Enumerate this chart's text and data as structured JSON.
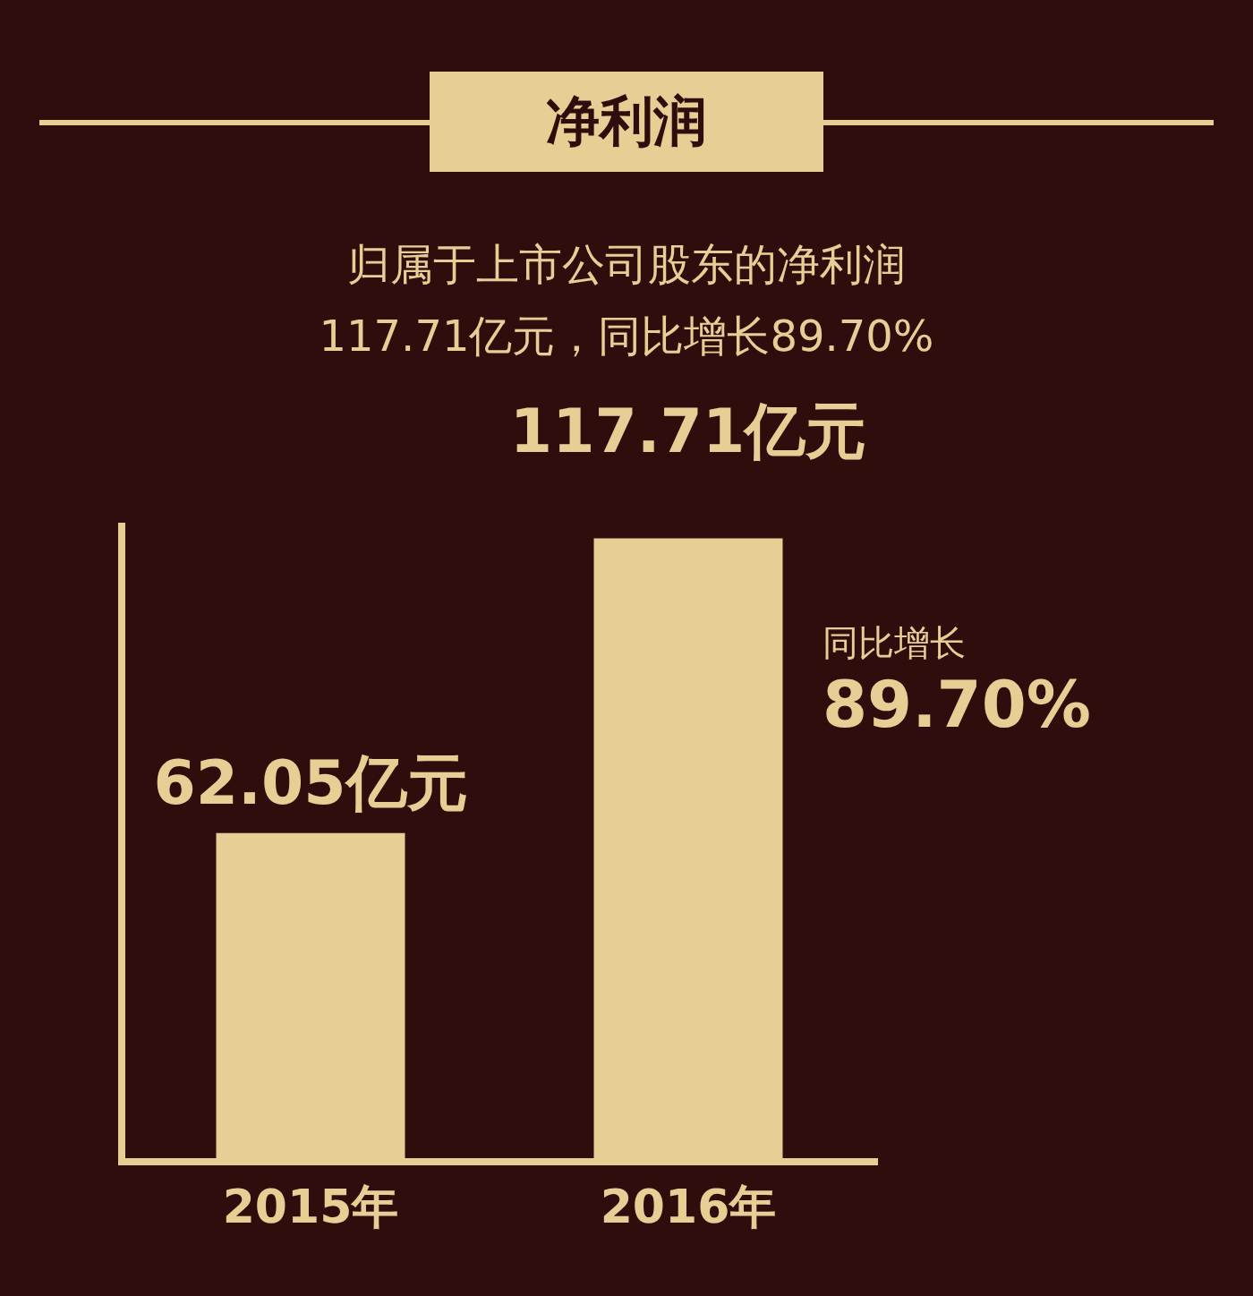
{
  "chart_data": {
    "type": "bar",
    "title": "净利润",
    "subtitle": "归属于上市公司股东的净利润\n117.71亿元，同比增长89.70%",
    "categories": [
      "2015年",
      "2016年"
    ],
    "values": [
      62.05,
      117.71
    ],
    "color": "#e6cf95",
    "value_labels": [
      "62.05亿元",
      "117.71亿元"
    ],
    "annotations": [
      "同比增长",
      "89.70%"
    ],
    "tick_labels": "x",
    "grid": false,
    "legend": false
  }
}
